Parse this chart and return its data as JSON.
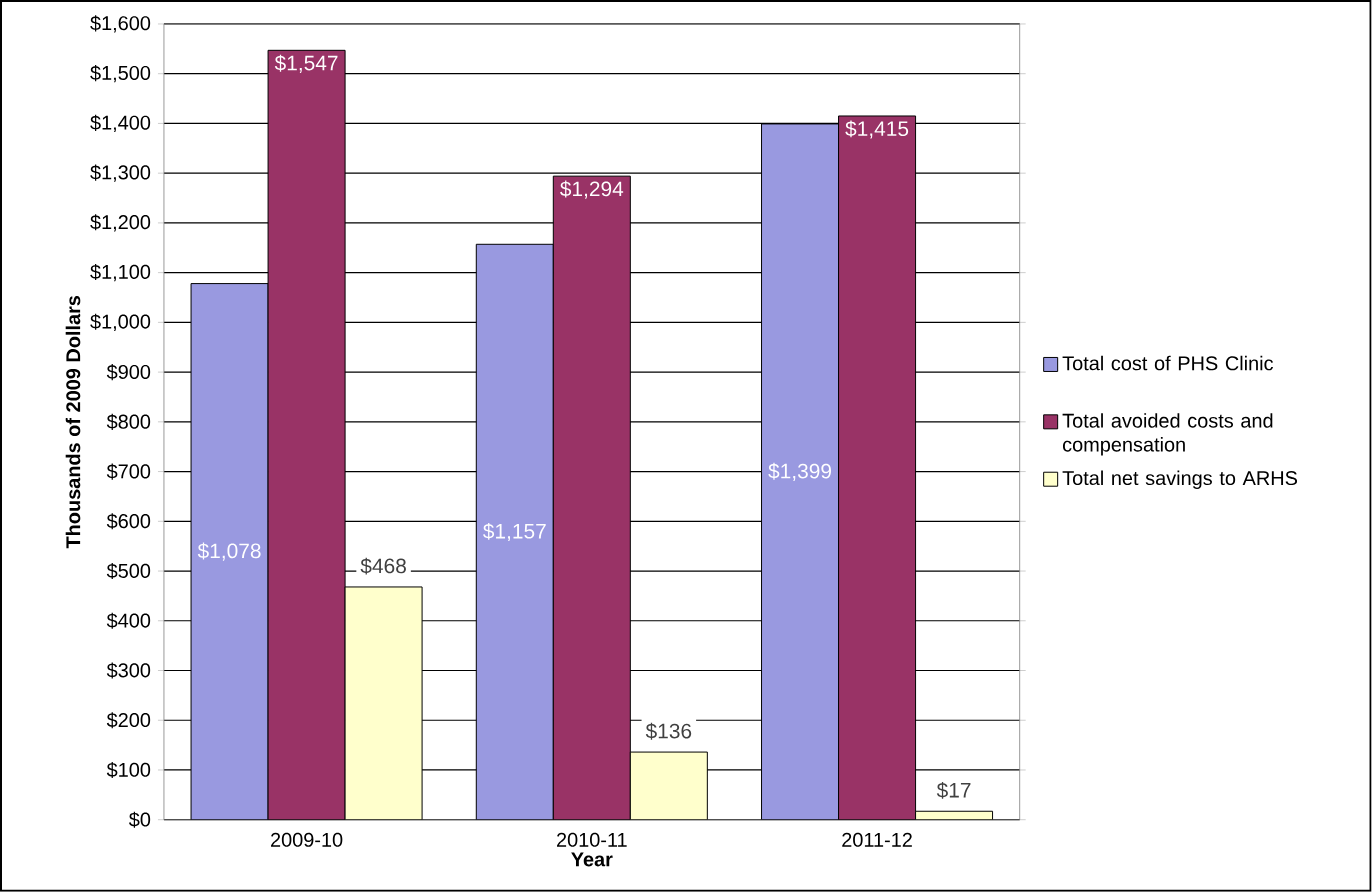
{
  "chart_data": {
    "type": "bar",
    "xlabel": "Year",
    "ylabel": "Thousands of 2009 Dollars",
    "categories": [
      "2009-10",
      "2010-11",
      "2011-12"
    ],
    "series": [
      {
        "name": "Total cost of PHS Clinic",
        "color": "#9999e0",
        "values": [
          1078,
          1157,
          1399
        ],
        "value_labels": [
          "$1,078",
          "$1,157",
          "$1,399"
        ]
      },
      {
        "name": "Total avoided costs and compensation",
        "color": "#993366",
        "values": [
          1547,
          1294,
          1415
        ],
        "value_labels": [
          "$1,547",
          "$1,294",
          "$1,415"
        ]
      },
      {
        "name": "Total net savings to ARHS",
        "color": "#ffffcc",
        "values": [
          468,
          136,
          17
        ],
        "value_labels": [
          "$468",
          "$136",
          "$17"
        ]
      }
    ],
    "ylim": [
      0,
      1600
    ],
    "yticks": [
      {
        "value": 0,
        "label": "$0"
      },
      {
        "value": 100,
        "label": "$100"
      },
      {
        "value": 200,
        "label": "$200"
      },
      {
        "value": 300,
        "label": "$300"
      },
      {
        "value": 400,
        "label": "$400"
      },
      {
        "value": 500,
        "label": "$500"
      },
      {
        "value": 600,
        "label": "$600"
      },
      {
        "value": 700,
        "label": "$700"
      },
      {
        "value": 800,
        "label": "$800"
      },
      {
        "value": 900,
        "label": "$900"
      },
      {
        "value": 1000,
        "label": "$1,000"
      },
      {
        "value": 1100,
        "label": "$1,100"
      },
      {
        "value": 1200,
        "label": "$1,200"
      },
      {
        "value": 1300,
        "label": "$1,300"
      },
      {
        "value": 1400,
        "label": "$1,400"
      },
      {
        "value": 1500,
        "label": "$1,500"
      },
      {
        "value": 1600,
        "label": "$1,600"
      }
    ],
    "grid": "y",
    "legend": "right"
  }
}
